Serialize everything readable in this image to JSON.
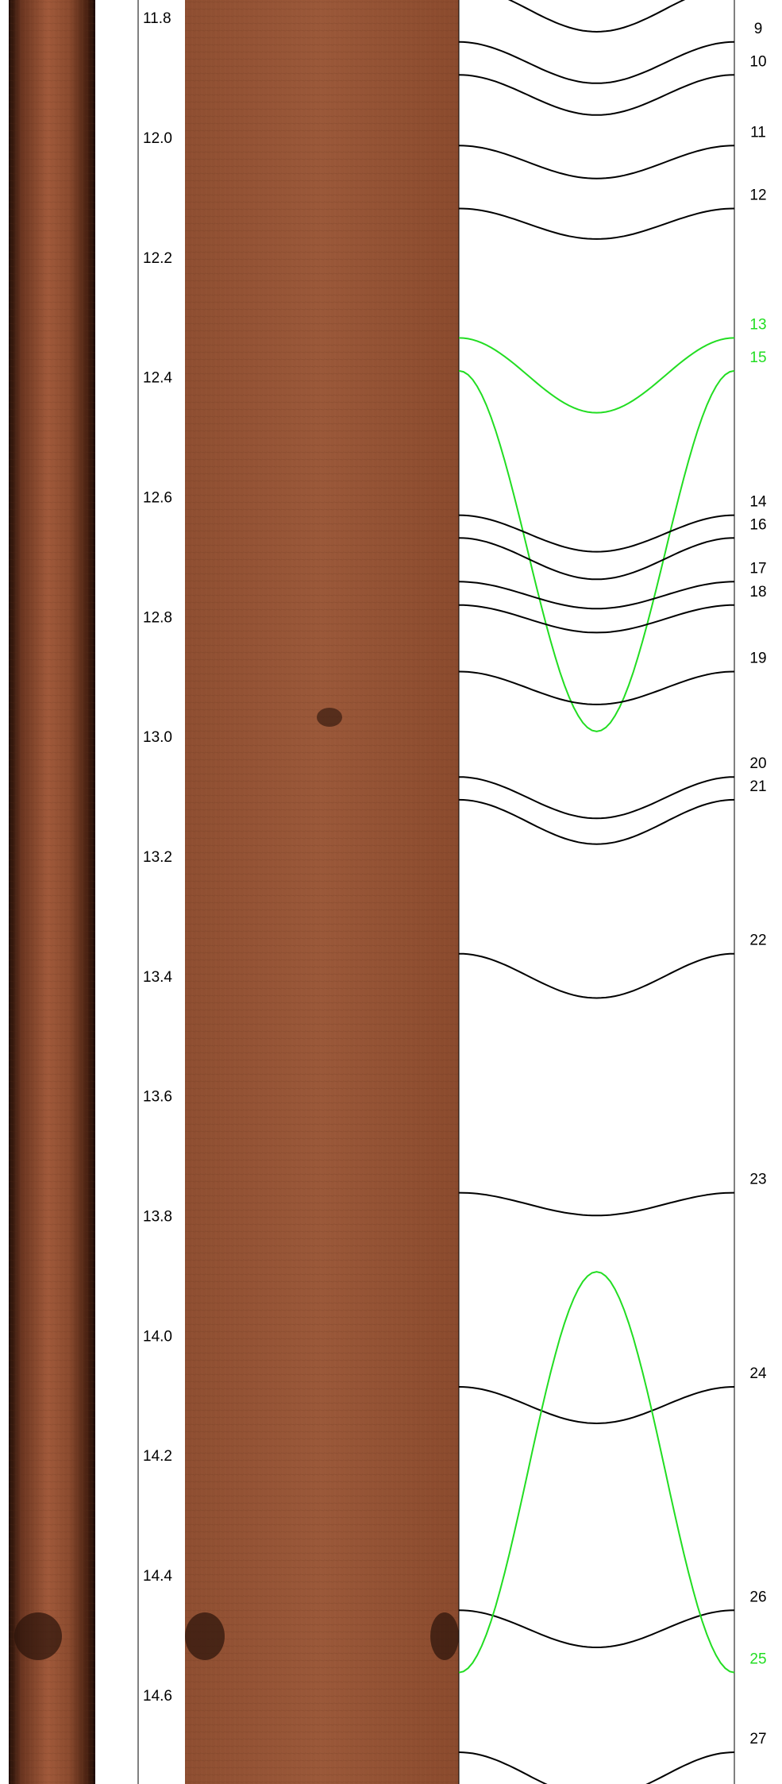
{
  "depth_track": {
    "depth_range": [
      11.768,
      14.746
    ],
    "ticks": [
      11.8,
      {
        "value": 12.0,
        "label": "12.0"
      },
      12.2,
      12.4,
      12.6,
      12.8,
      {
        "value": 13.0,
        "label": "13.0"
      },
      13.2,
      13.4,
      13.6,
      13.8,
      {
        "value": 14.0,
        "label": "14.0"
      },
      14.2,
      14.4,
      14.6
    ]
  },
  "picks": [
    {
      "top": 11.745,
      "bottom": 11.821,
      "color": "#000000"
    },
    {
      "label": "9",
      "top": 11.838,
      "bottom": 11.907,
      "color": "#000000"
    },
    {
      "label": "10",
      "top": 11.893,
      "bottom": 11.96,
      "color": "#000000"
    },
    {
      "label": "11",
      "top": 12.011,
      "bottom": 12.066,
      "color": "#000000"
    },
    {
      "label": "12",
      "top": 12.116,
      "bottom": 12.167,
      "color": "#000000"
    },
    {
      "label": "13",
      "top": 12.332,
      "bottom": 12.457,
      "color": "#22dd22"
    },
    {
      "label": "15",
      "top": 12.387,
      "bottom": 12.989,
      "color": "#22dd22"
    },
    {
      "label": "14",
      "top": 12.628,
      "bottom": 12.689,
      "color": "#000000"
    },
    {
      "label": "16",
      "top": 12.666,
      "bottom": 12.735,
      "color": "#000000"
    },
    {
      "label": "17",
      "top": 12.739,
      "bottom": 12.784,
      "color": "#000000"
    },
    {
      "label": "18",
      "top": 12.778,
      "bottom": 12.824,
      "color": "#000000"
    },
    {
      "label": "19",
      "top": 12.889,
      "bottom": 12.944,
      "color": "#000000"
    },
    {
      "label": "20",
      "top": 13.065,
      "bottom": 13.134,
      "color": "#000000"
    },
    {
      "label": "21",
      "top": 13.103,
      "bottom": 13.177,
      "color": "#000000"
    },
    {
      "label": "22",
      "top": 13.36,
      "bottom": 13.434,
      "color": "#000000"
    },
    {
      "label": "23",
      "top": 13.759,
      "bottom": 13.797,
      "color": "#000000"
    },
    {
      "label": "24",
      "top": 14.083,
      "bottom": 14.144,
      "color": "#000000"
    },
    {
      "label": "26",
      "top": 14.456,
      "bottom": 14.518,
      "color": "#000000"
    },
    {
      "label": "25",
      "top": 14.56,
      "bottom": 13.891,
      "color": "#22dd22"
    },
    {
      "label": "27",
      "top": 14.693,
      "bottom": 14.769,
      "color": "#000000"
    }
  ]
}
